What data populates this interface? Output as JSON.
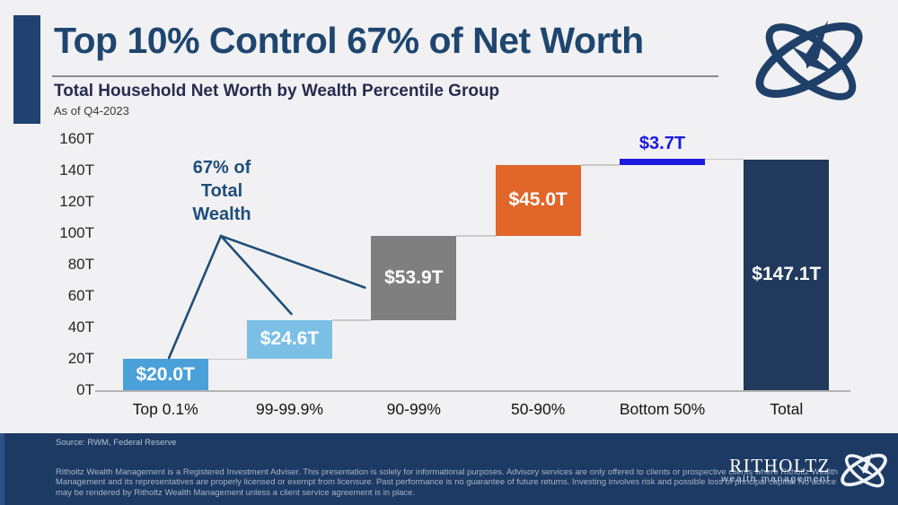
{
  "chart_data": {
    "type": "bar",
    "subtype": "waterfall",
    "title": "Top 10% Control 67% of Net Worth",
    "subtitle": "Total Household Net Worth by Wealth Percentile Group",
    "as_of": "As of Q4-2023",
    "categories": [
      "Top 0.1%",
      "99-99.9%",
      "90-99%",
      "50-90%",
      "Bottom 50%",
      "Total"
    ],
    "values": [
      20.0,
      24.6,
      53.9,
      45.0,
      3.7,
      147.1
    ],
    "value_labels": [
      "$20.0T",
      "$24.6T",
      "$53.9T",
      "$45.0T",
      "$3.7T",
      "$147.1T"
    ],
    "bar_styles": [
      "bar",
      "bar",
      "bar",
      "bar",
      "line",
      "total"
    ],
    "bar_colors": [
      "#4aa0d8",
      "#7cbfe6",
      "#7f7f7f",
      "#e0662a",
      "#1a1ae0",
      "#20395c"
    ],
    "ylim": [
      0,
      160
    ],
    "ytick_step": 20,
    "ytick_suffix": "T",
    "grid": "off",
    "legend": "none",
    "annotation": {
      "text": "67% of\nTotal\nWealth",
      "color": "#1f4e79"
    }
  },
  "footer": {
    "source": "Source: RWM, Federal Reserve",
    "disclaimer": "Ritholtz Wealth Management is a Registered Investment Adviser. This presentation is solely for informational purposes. Advisory services are only offered to clients or prospective clients where Ritholtz Wealth\nManagement and its representatives are properly licensed or exempt from licensure. Past performance is no guarantee of future returns. Investing involves risk and possible loss of principal capital. No advice\nmay be rendered by Ritholtz Wealth Management unless a client service agreement is in place.",
    "brand_name": "RITHOLTZ",
    "brand_tagline": "wealth management"
  },
  "colors": {
    "title_navy": "#1e466f",
    "accent_navy": "#1f4271",
    "footer_navy": "#1c3a63",
    "highlight_blue": "#1a1ae0",
    "annotation_blue": "#1f4e79"
  }
}
